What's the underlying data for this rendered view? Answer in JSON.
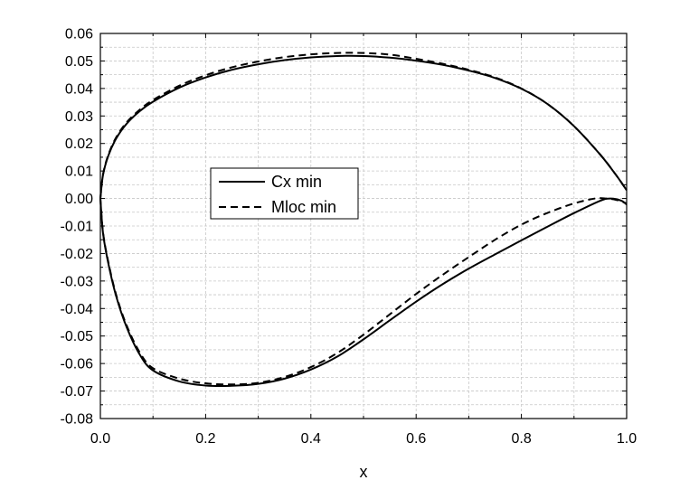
{
  "chart_data": {
    "type": "line",
    "title": "",
    "xlabel": "x",
    "ylabel": "",
    "xlim": [
      0.0,
      1.0
    ],
    "ylim": [
      -0.08,
      0.06
    ],
    "x_ticks": [
      0.0,
      0.2,
      0.4,
      0.6,
      0.8,
      1.0
    ],
    "x_tick_labels": [
      "0.0",
      "0.2",
      "0.4",
      "0.6",
      "0.8",
      "1.0"
    ],
    "y_ticks": [
      0.06,
      0.05,
      0.04,
      0.03,
      0.02,
      0.01,
      0.0,
      -0.01,
      -0.02,
      -0.03,
      -0.04,
      -0.05,
      -0.06,
      -0.07,
      -0.08
    ],
    "y_tick_labels": [
      "0.06",
      "0.05",
      "0.04",
      "0.03",
      "0.02",
      "0.01",
      "0.00",
      "-0.01",
      "-0.02",
      "-0.03",
      "-0.04",
      "-0.05",
      "-0.06",
      "-0.07",
      "-0.08"
    ],
    "grid": true,
    "legend_position": "center-left",
    "series": [
      {
        "name": "Cx min",
        "style": "solid",
        "color": "#000000",
        "upper": {
          "x": [
            0.0,
            0.005,
            0.015,
            0.03,
            0.05,
            0.075,
            0.1,
            0.15,
            0.2,
            0.25,
            0.3,
            0.35,
            0.4,
            0.45,
            0.5,
            0.55,
            0.6,
            0.65,
            0.7,
            0.75,
            0.8,
            0.85,
            0.9,
            0.95,
            0.98,
            1.0
          ],
          "y": [
            0.0,
            0.0085,
            0.0155,
            0.0218,
            0.0272,
            0.0318,
            0.0352,
            0.0403,
            0.044,
            0.0468,
            0.0488,
            0.0503,
            0.0513,
            0.0518,
            0.0518,
            0.0512,
            0.0501,
            0.0486,
            0.0465,
            0.0438,
            0.0399,
            0.0343,
            0.0263,
            0.0159,
            0.0085,
            0.003
          ]
        },
        "lower": {
          "x": [
            0.0,
            0.005,
            0.015,
            0.03,
            0.05,
            0.075,
            0.1,
            0.15,
            0.2,
            0.25,
            0.3,
            0.35,
            0.4,
            0.45,
            0.5,
            0.55,
            0.6,
            0.65,
            0.7,
            0.75,
            0.8,
            0.85,
            0.9,
            0.95,
            0.97,
            0.99,
            1.0
          ],
          "y": [
            0.0,
            -0.0125,
            -0.0235,
            -0.0355,
            -0.0468,
            -0.0568,
            -0.0625,
            -0.0665,
            -0.068,
            -0.0681,
            -0.0674,
            -0.0655,
            -0.0622,
            -0.0575,
            -0.0512,
            -0.0443,
            -0.0375,
            -0.0312,
            -0.0255,
            -0.0203,
            -0.0152,
            -0.0102,
            -0.0053,
            -0.0008,
            0.0,
            -0.0008,
            -0.0022
          ]
        }
      },
      {
        "name": "Mloc min",
        "style": "dashed",
        "color": "#000000",
        "upper": {
          "x": [
            0.0,
            0.005,
            0.015,
            0.03,
            0.05,
            0.075,
            0.1,
            0.15,
            0.2,
            0.25,
            0.3,
            0.35,
            0.4,
            0.45,
            0.5,
            0.55,
            0.6,
            0.65,
            0.7,
            0.75,
            0.8,
            0.85,
            0.9,
            0.95,
            0.98,
            1.0
          ],
          "y": [
            0.0,
            0.0087,
            0.0158,
            0.0222,
            0.0277,
            0.0323,
            0.0358,
            0.041,
            0.0448,
            0.0477,
            0.0498,
            0.0514,
            0.0524,
            0.0529,
            0.0529,
            0.0523,
            0.0508,
            0.049,
            0.0468,
            0.044,
            0.04,
            0.0343,
            0.0263,
            0.0159,
            0.0085,
            0.003
          ]
        },
        "lower": {
          "x": [
            0.0,
            0.005,
            0.015,
            0.03,
            0.05,
            0.075,
            0.1,
            0.15,
            0.2,
            0.25,
            0.3,
            0.35,
            0.4,
            0.45,
            0.5,
            0.55,
            0.6,
            0.65,
            0.7,
            0.75,
            0.8,
            0.85,
            0.9,
            0.94,
            0.96,
            0.98,
            1.0
          ],
          "y": [
            0.0,
            -0.0122,
            -0.023,
            -0.035,
            -0.0462,
            -0.056,
            -0.0617,
            -0.0655,
            -0.0672,
            -0.0676,
            -0.067,
            -0.0649,
            -0.0613,
            -0.0562,
            -0.0495,
            -0.0421,
            -0.0347,
            -0.0278,
            -0.0213,
            -0.015,
            -0.0095,
            -0.0052,
            -0.0018,
            0.0,
            0.0,
            -0.0005,
            -0.0018
          ]
        }
      }
    ]
  }
}
